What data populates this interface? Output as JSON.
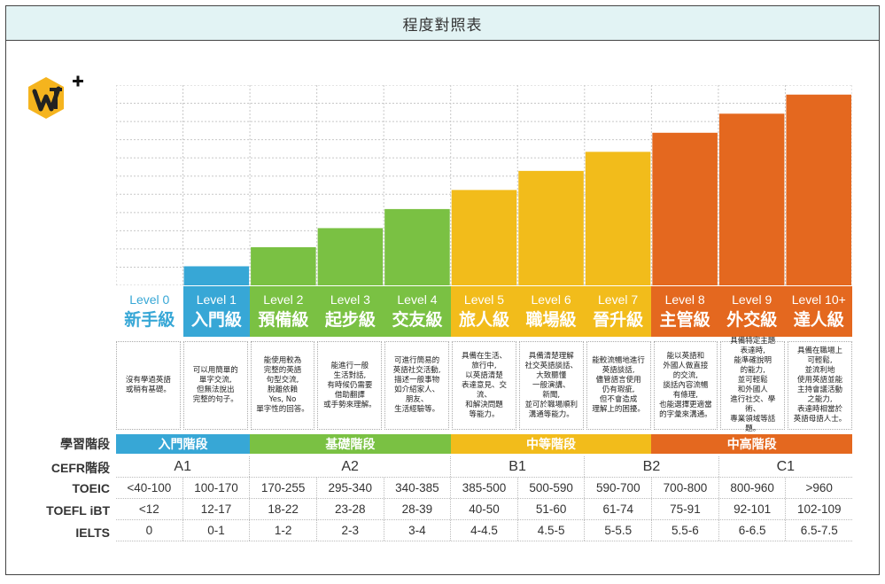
{
  "title": "程度對照表",
  "logo": {
    "icon": "vt-plus-logo",
    "hex_color": "#f5b41e",
    "plus_color": "#111111"
  },
  "chart_data": {
    "type": "bar",
    "categories": [
      "Level 0",
      "Level 1",
      "Level 2",
      "Level 3",
      "Level 4",
      "Level 5",
      "Level 6",
      "Level 7",
      "Level 8",
      "Level 9",
      "Level 10+"
    ],
    "values": [
      0,
      1,
      2,
      3,
      4,
      5,
      6,
      7,
      8,
      9,
      10
    ],
    "ylim": [
      0,
      10.5
    ],
    "grid": true,
    "colors": [
      "#ffffff",
      "#37a7d6",
      "#7ac143",
      "#7ac143",
      "#7ac143",
      "#f2bc1b",
      "#f2bc1b",
      "#f2bc1b",
      "#e4681f",
      "#e4681f",
      "#e4681f"
    ]
  },
  "levels": [
    {
      "name": "Level 0",
      "cn": "新手級",
      "color": "#ffffff"
    },
    {
      "name": "Level 1",
      "cn": "入門級",
      "color": "#37a7d6"
    },
    {
      "name": "Level 2",
      "cn": "預備級",
      "color": "#7ac143"
    },
    {
      "name": "Level 3",
      "cn": "起步級",
      "color": "#7ac143"
    },
    {
      "name": "Level 4",
      "cn": "交友級",
      "color": "#7ac143"
    },
    {
      "name": "Level 5",
      "cn": "旅人級",
      "color": "#f2bc1b"
    },
    {
      "name": "Level 6",
      "cn": "職場級",
      "color": "#f2bc1b"
    },
    {
      "name": "Level 7",
      "cn": "晉升級",
      "color": "#f2bc1b"
    },
    {
      "name": "Level 8",
      "cn": "主管級",
      "color": "#e4681f"
    },
    {
      "name": "Level 9",
      "cn": "外交級",
      "color": "#e4681f"
    },
    {
      "name": "Level 10+",
      "cn": "達人級",
      "color": "#e4681f"
    }
  ],
  "descriptions": [
    "沒有學過英語\n或稍有基礎。",
    "可以用簡單的\n單字交流,\n但無法說出\n完整的句子。",
    "能使用較為\n完整的英語\n句型交流,\n脫離依賴\nYes, No\n單字性的回答。",
    "能進行一般\n生活對話,\n有時候仍需要\n借助翻譯\n或手勢來理解。",
    "可進行簡易的\n英語社交活動,\n描述一般事物\n如介紹家人、\n朋友、\n生活經驗等。",
    "具備在生活、\n旅行中,\n以英語清楚\n表達意見、交流、\n和解決問題\n等能力。",
    "具備清楚理解\n社交英語談話、\n大致聽懂\n一般演講、\n新聞,\n並可於職場順利\n溝通等能力。",
    "能較流暢地進行\n英語談話,\n儘管語言使用\n仍有瑕疵,\n但不會造成\n理解上的困擾。",
    "能以英語和\n外國人做直接\n的交流,\n談話內容流暢\n有條理,\n也能選擇更適當\n的字彙來溝通。",
    "具備特定主題\n表達時,\n能準確說明\n的能力,\n並可輕鬆\n和外國人\n進行社交、學術、\n專業領域等話題。",
    "具備在職場上\n可輕鬆,\n並流利地\n使用英語並能\n主持會議活動\n之能力,\n表達時相當於\n英語母語人士。"
  ],
  "row_labels": {
    "stage": "學習階段",
    "cefr": "CEFR階段",
    "toeic": "TOEIC",
    "toefl": "TOEFL iBT",
    "ielts": "IELTS"
  },
  "stages": [
    {
      "label": "入門階段",
      "span": 2,
      "color": "#37a7d6"
    },
    {
      "label": "基礎階段",
      "span": 3,
      "color": "#7ac143"
    },
    {
      "label": "中等階段",
      "span": 3,
      "color": "#f2bc1b"
    },
    {
      "label": "中高階段",
      "span": 3,
      "color": "#e4681f"
    }
  ],
  "cefr": [
    {
      "label": "A1",
      "span": 2
    },
    {
      "label": "A2",
      "span": 3
    },
    {
      "label": "B1",
      "span": 2
    },
    {
      "label": "B2",
      "span": 2
    },
    {
      "label": "C1",
      "span": 2
    }
  ],
  "toeic": [
    "<40-100",
    "100-170",
    "170-255",
    "295-340",
    "340-385",
    "385-500",
    "500-590",
    "590-700",
    "700-800",
    "800-960",
    ">960"
  ],
  "toefl": [
    "<12",
    "12-17",
    "18-22",
    "23-28",
    "28-39",
    "40-50",
    "51-60",
    "61-74",
    "75-91",
    "92-101",
    "102-109"
  ],
  "ielts": [
    "0",
    "0-1",
    "1-2",
    "2-3",
    "3-4",
    "4-4.5",
    "4.5-5",
    "5-5.5",
    "5.5-6",
    "6-6.5",
    "6.5-7.5"
  ]
}
